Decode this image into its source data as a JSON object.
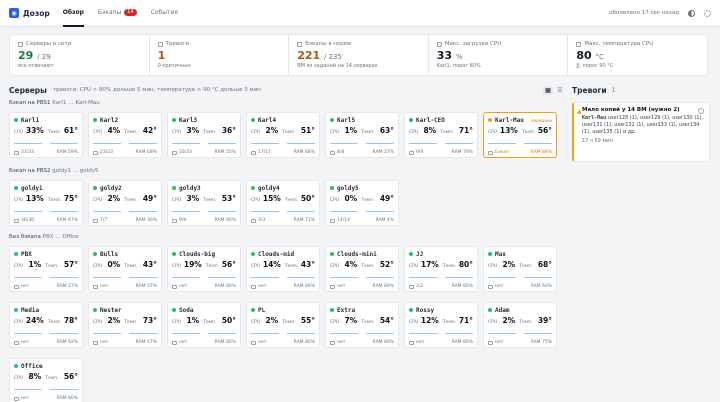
{
  "header": {
    "app_name": "Дозор",
    "tabs": [
      {
        "label": "Обзор",
        "active": true
      },
      {
        "label": "Бэкапы",
        "badge": "14"
      },
      {
        "label": "События"
      }
    ],
    "updated": "обновлено 17 сек назад"
  },
  "stats": [
    {
      "label": "Серверы в сети",
      "value": "29",
      "suffix": "/ 29",
      "sub": "все отвечают",
      "color": "#15803d"
    },
    {
      "label": "Тревоги",
      "value": "1",
      "suffix": "",
      "sub": "0 критичных",
      "color": "#b45309"
    },
    {
      "label": "Бэкапы в норме",
      "value": "221",
      "suffix": "/ 235",
      "sub": "ВМ из заданий на 14 серверах",
      "color": "#b45309"
    },
    {
      "label": "Макс. загрузка CPU",
      "value": "33",
      "suffix": "%",
      "sub": "Karl1, порог 80%",
      "color": "#111827"
    },
    {
      "label": "Макс. температура CPU",
      "value": "80",
      "suffix": "°C",
      "sub": "JJ, порог 90 °C",
      "color": "#111827"
    }
  ],
  "servers": {
    "title": "Серверы",
    "hint": "тревоги: CPU > 80% дольше 5 мин, температура > 90 °C дольше 3 мин",
    "labels": {
      "cpu": "CPU",
      "temp": "Темп.",
      "ram": "RAM"
    },
    "groups": [
      {
        "title": "Бэкап на PBS1",
        "subtitle": "Karl1 … Karl-Mau",
        "cards": [
          {
            "name": "Karl1",
            "cpu": "33%",
            "temp": "61°",
            "disk": "33/33",
            "ram": "RAM 59%"
          },
          {
            "name": "Karl2",
            "cpu": "4%",
            "temp": "42°",
            "disk": "23/23",
            "ram": "RAM 68%"
          },
          {
            "name": "Karl3",
            "cpu": "3%",
            "temp": "36°",
            "disk": "33/33",
            "ram": "RAM 55%"
          },
          {
            "name": "Karl4",
            "cpu": "2%",
            "temp": "51°",
            "disk": "17/17",
            "ram": "RAM 68%"
          },
          {
            "name": "Karl5",
            "cpu": "1%",
            "temp": "63°",
            "disk": "8/8",
            "ram": "RAM 27%"
          },
          {
            "name": "Karl-CEO",
            "cpu": "8%",
            "temp": "71°",
            "disk": "9/9",
            "ram": "RAM 79%"
          },
          {
            "name": "Karl-Mau",
            "cpu": "13%",
            "temp": "56°",
            "disk": "Бэкап",
            "ram": "RAM 88%",
            "warn": true,
            "tag": "внимание"
          }
        ]
      },
      {
        "title": "Бэкап на PBS2",
        "subtitle": "goldy1 … goldy5",
        "cards": [
          {
            "name": "goldy1",
            "cpu": "13%",
            "temp": "75°",
            "disk": "36/36",
            "ram": "RAM 67%"
          },
          {
            "name": "goldy2",
            "cpu": "2%",
            "temp": "49°",
            "disk": "7/7",
            "ram": "RAM 36%"
          },
          {
            "name": "goldy3",
            "cpu": "3%",
            "temp": "53°",
            "disk": "9/9",
            "ram": "RAM 80%"
          },
          {
            "name": "goldy4",
            "cpu": "15%",
            "temp": "50°",
            "disk": "3/3",
            "ram": "RAM 72%"
          },
          {
            "name": "goldy5",
            "cpu": "0%",
            "temp": "49°",
            "disk": "14/14",
            "ram": "RAM 4%"
          }
        ]
      },
      {
        "title": "Без бэкапа",
        "subtitle": "PBX … Office",
        "cards": [
          {
            "name": "PBX",
            "cpu": "1%",
            "temp": "57°",
            "disk": "нет",
            "ram": "RAM 27%"
          },
          {
            "name": "Bulls",
            "cpu": "0%",
            "temp": "43°",
            "disk": "нет",
            "ram": "RAM 37%"
          },
          {
            "name": "Clouds-big",
            "cpu": "19%",
            "temp": "56°",
            "disk": "нет",
            "ram": "RAM 80%"
          },
          {
            "name": "Clouds-mid",
            "cpu": "14%",
            "temp": "43°",
            "disk": "нет",
            "ram": "RAM 89%"
          },
          {
            "name": "Clouds-mini",
            "cpu": "4%",
            "temp": "52°",
            "disk": "нет",
            "ram": "RAM 89%"
          },
          {
            "name": "JJ",
            "cpu": "17%",
            "temp": "80°",
            "disk": "2/2",
            "ram": "RAM 80%"
          },
          {
            "name": "Max",
            "cpu": "2%",
            "temp": "68°",
            "disk": "нет",
            "ram": "RAM 60%"
          },
          {
            "name": "Media",
            "cpu": "24%",
            "temp": "78°",
            "disk": "нет",
            "ram": "RAM 92%"
          },
          {
            "name": "Nester",
            "cpu": "2%",
            "temp": "73°",
            "disk": "нет",
            "ram": "RAM 57%"
          },
          {
            "name": "Soda",
            "cpu": "1%",
            "temp": "50°",
            "disk": "нет",
            "ram": "RAM 80%"
          },
          {
            "name": "PL",
            "cpu": "2%",
            "temp": "55°",
            "disk": "нет",
            "ram": "RAM 80%"
          },
          {
            "name": "Extra",
            "cpu": "7%",
            "temp": "54°",
            "disk": "нет",
            "ram": "RAM 80%"
          },
          {
            "name": "Rossy",
            "cpu": "12%",
            "temp": "71°",
            "disk": "нет",
            "ram": "RAM 80%"
          },
          {
            "name": "Adam",
            "cpu": "2%",
            "temp": "39°",
            "disk": "нет",
            "ram": "RAM 75%"
          },
          {
            "name": "Office",
            "cpu": "8%",
            "temp": "56°",
            "disk": "нет",
            "ram": "RAM 80%"
          }
        ]
      }
    ]
  },
  "alerts": {
    "title": "Тревоги",
    "count": "1",
    "items": [
      {
        "title": "Мало копий у 14 ВМ (нужно 2)",
        "host": "Karl-Mau",
        "body": "user128 (1), user129 (1), user130 (1), user131 (1), user132 (1), user133 (1), user134 (1), user135 (1) и др.",
        "meta": "17 ч 59 мин"
      }
    ]
  },
  "colors": {
    "accent": "#2563eb",
    "ok": "#22c55e",
    "warn": "#f59e0b",
    "danger": "#dc2626"
  }
}
